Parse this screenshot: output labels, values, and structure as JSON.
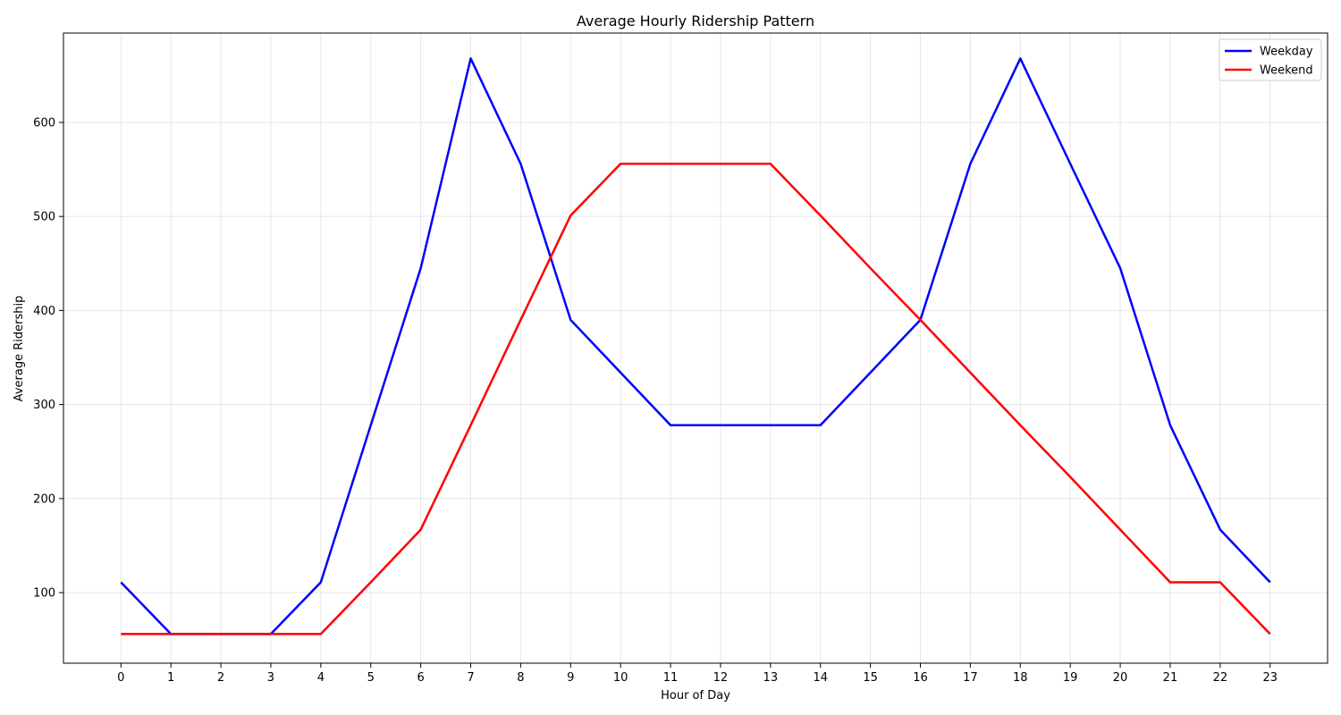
{
  "chart_data": {
    "type": "line",
    "title": "Average Hourly Ridership Pattern",
    "xlabel": "Hour of Day",
    "ylabel": "Average Ridership",
    "x": [
      0,
      1,
      2,
      3,
      4,
      5,
      6,
      7,
      8,
      9,
      10,
      11,
      12,
      13,
      14,
      15,
      16,
      17,
      18,
      19,
      20,
      21,
      22,
      23
    ],
    "xlim": [
      -1.15,
      24.15
    ],
    "ylim": [
      25,
      695
    ],
    "yticks": [
      100,
      200,
      300,
      400,
      500,
      600
    ],
    "grid": true,
    "legend_position": "top-right",
    "series": [
      {
        "name": "Weekday",
        "color": "#0000ff",
        "values": [
          111,
          56,
          56,
          56,
          111,
          278,
          445,
          668,
          556,
          390,
          334,
          278,
          278,
          278,
          278,
          334,
          390,
          556,
          668,
          556,
          445,
          278,
          167,
          111
        ]
      },
      {
        "name": "Weekend",
        "color": "#ff0000",
        "values": [
          56,
          56,
          56,
          56,
          56,
          111,
          167,
          278,
          390,
          501,
          556,
          556,
          556,
          556,
          501,
          445,
          390,
          334,
          278,
          223,
          167,
          111,
          111,
          56
        ]
      }
    ]
  }
}
